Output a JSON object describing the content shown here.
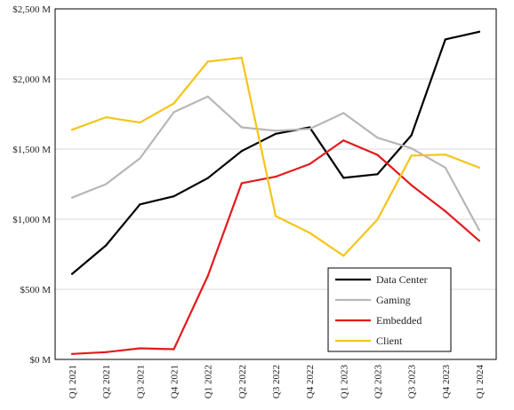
{
  "chart_data": {
    "type": "line",
    "categories": [
      "Q1 2021",
      "Q2 2021",
      "Q3 2021",
      "Q4 2021",
      "Q1 2022",
      "Q2 2022",
      "Q3 2022",
      "Q4 2022",
      "Q1 2023",
      "Q2 2023",
      "Q3 2023",
      "Q4 2023",
      "Q1 2024"
    ],
    "ylim": [
      0,
      2500
    ],
    "yticks": [
      0,
      500,
      1000,
      1500,
      2000,
      2500
    ],
    "ytick_labels": [
      "$0 M",
      "$500 M",
      "$1,000 M",
      "$1,500 M",
      "$2,000 M",
      "$2,500 M"
    ],
    "grid": true,
    "legend_position": "bottom-right",
    "series": [
      {
        "name": "Data Center",
        "color": "#000000",
        "values": [
          610,
          813,
          1106,
          1163,
          1293,
          1486,
          1609,
          1655,
          1295,
          1321,
          1598,
          2282,
          2337
        ]
      },
      {
        "name": "Gaming",
        "color": "#b7b7b7",
        "values": [
          1154,
          1250,
          1434,
          1763,
          1875,
          1655,
          1631,
          1644,
          1757,
          1581,
          1506,
          1368,
          922
        ]
      },
      {
        "name": "Embedded",
        "color": "#e41a1c",
        "values": [
          39,
          52,
          79,
          73,
          595,
          1257,
          1303,
          1393,
          1562,
          1459,
          1243,
          1057,
          846
        ]
      },
      {
        "name": "Client",
        "color": "#f5c518",
        "values": [
          1638,
          1727,
          1689,
          1826,
          2124,
          2152,
          1022,
          903,
          739,
          998,
          1453,
          1461,
          1368
        ]
      }
    ]
  }
}
